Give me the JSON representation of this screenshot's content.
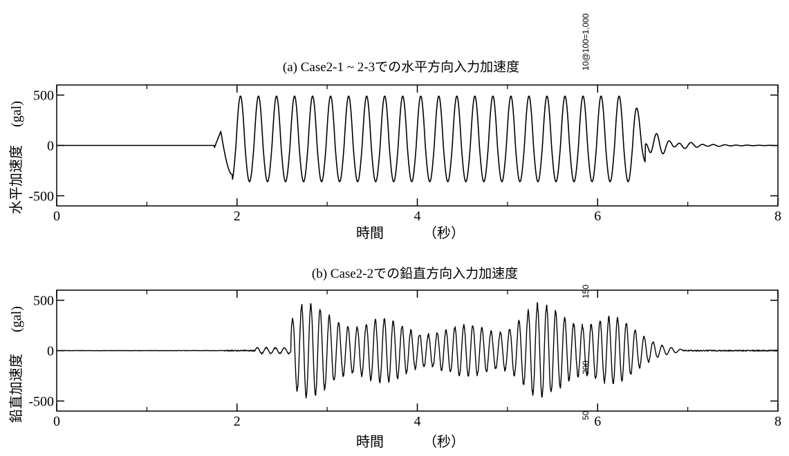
{
  "chart_data": [
    {
      "type": "line",
      "title": "(a) Case2-1 ~ 2-3での水平方向入力加速度",
      "xlabel": "時間",
      "xlabel_unit": "（秒）",
      "ylabel": "水平加速度",
      "ylabel_unit": "(gal)",
      "xlim": [
        0,
        8
      ],
      "ylim": [
        -600,
        600
      ],
      "xticks": [
        0,
        2,
        4,
        6,
        8
      ],
      "yticks": [
        -500,
        0,
        500
      ],
      "xtick_labels": [
        "0",
        "2",
        "4",
        "6",
        "8"
      ],
      "ytick_labels": [
        "-500",
        "0",
        "500"
      ],
      "color": "#000000",
      "signal": {
        "kind": "harmonic",
        "onset_s": 1.75,
        "ramp_peak_s": 1.82,
        "ramp_peak_gal": 140,
        "steady_start_s": 1.95,
        "steady_end_s": 6.38,
        "frequency_hz": 5.0,
        "positive_peak_gal": 490,
        "negative_peak_gal": -360,
        "decay_end_s": 7.3,
        "decay_first_peak_gal": 100
      },
      "annotation": "10@100=1,000"
    },
    {
      "type": "line",
      "title": "(b) Case2-2での鉛直方向入力加速度",
      "xlabel": "時間",
      "xlabel_unit": "（秒）",
      "ylabel": "鉛直加速度",
      "ylabel_unit": "(gal)",
      "xlim": [
        0,
        8
      ],
      "ylim": [
        -600,
        600
      ],
      "xticks": [
        0,
        2,
        4,
        6,
        8
      ],
      "yticks": [
        -500,
        0,
        500
      ],
      "xtick_labels": [
        "0",
        "2",
        "4",
        "6",
        "8"
      ],
      "ytick_labels": [
        "-500",
        "0",
        "500"
      ],
      "color": "#000000",
      "signal": {
        "kind": "harmonic",
        "noise_start_s": 1.85,
        "small_start_s": 2.2,
        "small_amp_gal": 35,
        "strong_start_s": 2.6,
        "strong_end_s": 6.55,
        "frequency_hz": 10.0,
        "envelope": [
          [
            2.6,
            320
          ],
          [
            2.7,
            420
          ],
          [
            3.0,
            400
          ],
          [
            3.4,
            310
          ],
          [
            3.9,
            250
          ],
          [
            4.4,
            220
          ],
          [
            4.9,
            260
          ],
          [
            5.3,
            420
          ],
          [
            5.8,
            380
          ],
          [
            6.2,
            300
          ],
          [
            6.55,
            160
          ],
          [
            6.75,
            60
          ],
          [
            6.9,
            15
          ]
        ],
        "peak_gal": 500,
        "trough_gal": -450
      },
      "annotations": [
        "150",
        "200",
        "50"
      ]
    }
  ]
}
